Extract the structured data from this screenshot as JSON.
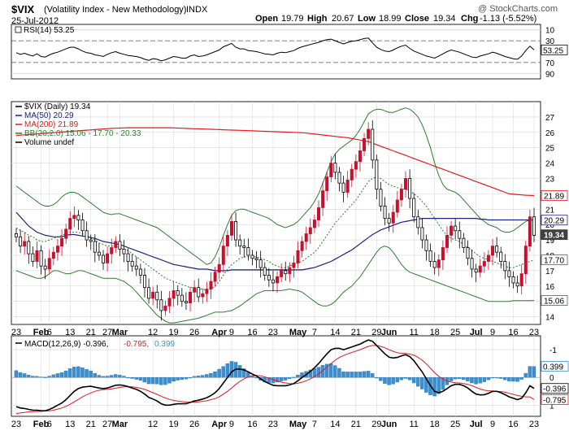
{
  "header": {
    "symbol": "$VIX",
    "description": "(Volatility Index - New Methodology)",
    "exchange": "INDX",
    "date": "25-Jul-2012",
    "watermark": "@ StockCharts.com",
    "quote": {
      "open_label": "Open",
      "open": "19.79",
      "high_label": "High",
      "high": "20.67",
      "low_label": "Low",
      "low": "18.99",
      "close_label": "Close",
      "close": "19.34",
      "chg_label": "Chg",
      "chg": "-1.13 (-5.52%)"
    }
  },
  "colors": {
    "up": "#000000",
    "down": "#c8102e",
    "ma50": "#1a237e",
    "ma200": "#e31a1c",
    "bollinger": "#2e7d32",
    "rsi": "#000000",
    "macd": "#000000",
    "signal": "#e31a1c",
    "histogram": "#3a8fd0",
    "grid": "#d6d6d6",
    "last_badge": "#404040"
  },
  "rsi_panel": {
    "legend": "RSI(14) 53.25",
    "ticks": [
      "90",
      "70",
      "30",
      "10"
    ],
    "last_badge": "53.25"
  },
  "price_panel": {
    "legend": [
      {
        "text": "$VIX (Daily) 19.34",
        "color": "#000000"
      },
      {
        "text": "MA(50) 20.29",
        "color": "#1a237e"
      },
      {
        "text": "MA(200) 21.89",
        "color": "#e31a1c"
      },
      {
        "text": "BB(20,2.0) 15.06 - 17.70 - 20.33",
        "color": "#2e7d32"
      },
      {
        "text": "Volume undef",
        "color": "#000000"
      }
    ],
    "ticks": [
      "27",
      "26",
      "25",
      "24",
      "23",
      "22",
      "21",
      "20",
      "19",
      "18",
      "17",
      "16",
      "15",
      "14"
    ],
    "badges": [
      {
        "text": "21.89",
        "value": 21.89,
        "bg": "#ffffff",
        "fg": "#000000",
        "border": "#e31a1c"
      },
      {
        "text": "20.29",
        "value": 20.29,
        "bg": "#ffffff",
        "fg": "#000000",
        "border": "#1a237e"
      },
      {
        "text": "19.34",
        "value": 19.34,
        "bg": "#404040",
        "fg": "#ffffff",
        "border": "#404040"
      },
      {
        "text": "17.70",
        "value": 17.7,
        "bg": "#ffffff",
        "fg": "#000000",
        "border": "#2e7d32"
      },
      {
        "text": "15.06",
        "value": 15.06,
        "bg": "#ffffff",
        "fg": "#000000",
        "border": "#2e7d32"
      }
    ]
  },
  "macd_panel": {
    "legend": [
      {
        "text": "MACD(12,26,9) -0.396,",
        "color": "#000000"
      },
      {
        "text": " -0.795,",
        "color": "#e31a1c"
      },
      {
        "text": " 0.399",
        "color": "#3a8fd0"
      }
    ],
    "ticks": [
      "1",
      "0",
      "-1"
    ],
    "badges": [
      {
        "text": "0.399",
        "value": 0.399,
        "bg": "#ffffff",
        "fg": "#000000",
        "border": "#3a8fd0"
      },
      {
        "text": "-0.396",
        "value": -0.396,
        "bg": "#ffffff",
        "fg": "#000000",
        "border": "#000000"
      },
      {
        "text": "-0.795",
        "value": -0.795,
        "bg": "#ffffff",
        "fg": "#000000",
        "border": "#e31a1c"
      }
    ]
  },
  "x_axis": {
    "labels": [
      {
        "text": "23",
        "bold": false,
        "i": 0
      },
      {
        "text": "Feb",
        "bold": true,
        "i": 6
      },
      {
        "text": "6",
        "bold": false,
        "i": 8
      },
      {
        "text": "13",
        "bold": false,
        "i": 13
      },
      {
        "text": "21",
        "bold": false,
        "i": 18
      },
      {
        "text": "27",
        "bold": false,
        "i": 22
      },
      {
        "text": "Mar",
        "bold": true,
        "i": 25
      },
      {
        "text": "12",
        "bold": false,
        "i": 33
      },
      {
        "text": "19",
        "bold": false,
        "i": 38
      },
      {
        "text": "26",
        "bold": false,
        "i": 43
      },
      {
        "text": "Apr",
        "bold": true,
        "i": 49
      },
      {
        "text": "9",
        "bold": false,
        "i": 52
      },
      {
        "text": "16",
        "bold": false,
        "i": 57
      },
      {
        "text": "23",
        "bold": false,
        "i": 62
      },
      {
        "text": "May",
        "bold": true,
        "i": 68
      },
      {
        "text": "7",
        "bold": false,
        "i": 72
      },
      {
        "text": "14",
        "bold": false,
        "i": 77
      },
      {
        "text": "21",
        "bold": false,
        "i": 82
      },
      {
        "text": "29",
        "bold": false,
        "i": 87
      },
      {
        "text": "Jun",
        "bold": true,
        "i": 90
      },
      {
        "text": "11",
        "bold": false,
        "i": 96
      },
      {
        "text": "18",
        "bold": false,
        "i": 101
      },
      {
        "text": "25",
        "bold": false,
        "i": 106
      },
      {
        "text": "Jul",
        "bold": true,
        "i": 111
      },
      {
        "text": "9",
        "bold": false,
        "i": 115
      },
      {
        "text": "16",
        "bold": false,
        "i": 120
      },
      {
        "text": "23",
        "bold": false,
        "i": 125
      }
    ]
  },
  "chart_data": {
    "type": "candlestick",
    "title": "$VIX (Volatility Index - New Methodology) INDX",
    "price_ylim": [
      13.5,
      28
    ],
    "price_ticks": [
      14,
      15,
      16,
      17,
      18,
      19,
      20,
      21,
      22,
      23,
      24,
      25,
      26,
      27
    ],
    "rsi_ylim": [
      0,
      100
    ],
    "rsi_ticks": [
      10,
      30,
      70,
      90
    ],
    "macd_ylim": [
      -1.4,
      1.5
    ],
    "macd_ticks": [
      -1,
      0,
      1
    ],
    "close": [
      19.2,
      18.6,
      18.9,
      18.1,
      17.6,
      18.3,
      17.3,
      17.1,
      17.8,
      18.2,
      18.6,
      19.1,
      19.7,
      20.4,
      20.6,
      20.3,
      19.6,
      19.0,
      18.9,
      18.2,
      18.0,
      17.5,
      18.1,
      18.5,
      18.9,
      18.4,
      18.1,
      17.6,
      17.3,
      17.1,
      16.7,
      15.9,
      15.2,
      15.6,
      15.1,
      14.4,
      14.7,
      15.2,
      15.7,
      15.4,
      15.0,
      14.9,
      15.6,
      15.9,
      15.3,
      15.5,
      15.8,
      16.3,
      16.9,
      17.4,
      18.6,
      19.3,
      20.2,
      19.0,
      18.6,
      18.5,
      18.0,
      17.8,
      17.7,
      17.2,
      16.7,
      16.4,
      16.2,
      16.6,
      17.0,
      16.8,
      17.2,
      17.5,
      18.3,
      18.9,
      19.4,
      19.8,
      20.3,
      21.1,
      22.2,
      23.1,
      24.0,
      23.4,
      22.7,
      22.1,
      22.9,
      23.6,
      24.1,
      24.8,
      25.6,
      26.2,
      24.2,
      22.3,
      21.2,
      20.4,
      20.1,
      20.8,
      21.6,
      22.3,
      23.0,
      21.7,
      20.5,
      19.8,
      19.0,
      18.3,
      17.6,
      17.2,
      17.7,
      18.5,
      19.3,
      19.9,
      19.6,
      19.1,
      18.5,
      17.8,
      17.1,
      16.9,
      17.3,
      17.6,
      18.0,
      18.6,
      18.2,
      17.6,
      17.0,
      16.6,
      16.2,
      16.0,
      16.8,
      18.6,
      20.5,
      19.3
    ],
    "ma50": [
      20.8,
      20.5,
      20.2,
      19.9,
      19.7,
      19.5,
      19.4,
      19.3,
      19.25,
      19.2,
      19.2,
      19.2,
      19.3,
      19.35,
      19.35,
      19.3,
      19.25,
      19.2,
      19.15,
      19.1,
      19.0,
      18.9,
      18.85,
      18.8,
      18.75,
      18.7,
      18.6,
      18.5,
      18.4,
      18.3,
      18.2,
      18.1,
      18.0,
      17.9,
      17.8,
      17.7,
      17.6,
      17.5,
      17.4,
      17.35,
      17.3,
      17.25,
      17.2,
      17.15,
      17.1,
      17.1,
      17.1,
      17.05,
      17.0,
      17.0,
      17.0,
      17.0,
      17.05,
      17.05,
      17.05,
      17.05,
      17.05,
      17.05,
      17.05,
      17.05,
      17.05,
      17.05,
      17.05,
      17.05,
      17.05,
      17.05,
      17.05,
      17.05,
      17.05,
      17.05,
      17.1,
      17.15,
      17.2,
      17.3,
      17.4,
      17.5,
      17.6,
      17.75,
      17.9,
      18.05,
      18.2,
      18.35,
      18.55,
      18.75,
      18.95,
      19.15,
      19.35,
      19.5,
      19.65,
      19.75,
      19.85,
      19.95,
      20.05,
      20.15,
      20.2,
      20.25,
      20.3,
      20.35,
      20.4,
      20.4,
      20.4,
      20.4,
      20.4,
      20.4,
      20.4,
      20.4,
      20.4,
      20.4,
      20.4,
      20.4,
      20.4,
      20.4,
      20.35,
      20.35,
      20.3,
      20.3,
      20.3,
      20.3,
      20.3,
      20.3,
      20.3,
      20.3,
      20.3,
      20.3,
      20.3,
      20.29
    ],
    "ma200": [
      25.8,
      25.82,
      25.84,
      25.86,
      25.88,
      25.9,
      25.92,
      25.94,
      25.96,
      25.98,
      26.0,
      26.02,
      26.04,
      26.06,
      26.08,
      26.1,
      26.12,
      26.14,
      26.16,
      26.18,
      26.2,
      26.22,
      26.24,
      26.26,
      26.27,
      26.28,
      26.29,
      26.3,
      26.3,
      26.3,
      26.3,
      26.3,
      26.3,
      26.3,
      26.3,
      26.3,
      26.3,
      26.3,
      26.29,
      26.28,
      26.27,
      26.26,
      26.25,
      26.24,
      26.23,
      26.22,
      26.21,
      26.2,
      26.19,
      26.18,
      26.17,
      26.16,
      26.15,
      26.14,
      26.13,
      26.12,
      26.11,
      26.1,
      26.09,
      26.08,
      26.07,
      26.06,
      26.05,
      26.04,
      26.03,
      26.02,
      26.01,
      26.0,
      25.99,
      25.98,
      25.95,
      25.92,
      25.89,
      25.86,
      25.83,
      25.8,
      25.77,
      25.74,
      25.71,
      25.68,
      25.65,
      25.6,
      25.55,
      25.5,
      25.45,
      25.4,
      25.3,
      25.2,
      25.1,
      25.0,
      24.9,
      24.8,
      24.7,
      24.6,
      24.5,
      24.4,
      24.3,
      24.2,
      24.1,
      24.0,
      23.9,
      23.8,
      23.7,
      23.6,
      23.5,
      23.4,
      23.3,
      23.2,
      23.1,
      23.0,
      22.9,
      22.8,
      22.7,
      22.6,
      22.5,
      22.4,
      22.3,
      22.2,
      22.1,
      22.0,
      21.97,
      21.95,
      21.93,
      21.91,
      21.9,
      21.89
    ],
    "bb_upper": [
      22.5,
      22.3,
      22.1,
      21.9,
      21.7,
      21.5,
      21.3,
      21.2,
      21.2,
      21.3,
      21.5,
      21.8,
      22.0,
      22.1,
      22.1,
      22.0,
      21.8,
      21.6,
      21.4,
      21.2,
      21.0,
      20.8,
      20.7,
      20.65,
      20.7,
      20.7,
      20.6,
      20.5,
      20.4,
      20.3,
      20.2,
      20.1,
      20.0,
      19.9,
      19.8,
      19.6,
      19.4,
      19.2,
      19.0,
      18.8,
      18.6,
      18.4,
      18.2,
      18.0,
      17.8,
      17.6,
      17.4,
      17.5,
      17.9,
      18.5,
      19.3,
      20.0,
      20.6,
      20.9,
      21.0,
      21.0,
      20.9,
      20.8,
      20.7,
      20.6,
      20.5,
      20.4,
      20.2,
      20.0,
      19.9,
      19.8,
      19.9,
      20.0,
      20.2,
      20.5,
      20.8,
      21.1,
      21.5,
      22.0,
      22.7,
      23.4,
      24.1,
      24.6,
      24.9,
      25.1,
      25.3,
      25.5,
      25.8,
      26.2,
      26.7,
      27.2,
      27.4,
      27.5,
      27.5,
      27.4,
      27.3,
      27.3,
      27.4,
      27.5,
      27.6,
      27.5,
      27.3,
      27.0,
      26.5,
      25.8,
      25.0,
      24.0,
      23.2,
      22.6,
      22.3,
      22.2,
      22.1,
      21.9,
      21.6,
      21.3,
      21.0,
      20.7,
      20.4,
      20.2,
      20.0,
      19.9,
      19.8,
      19.6,
      19.5,
      19.5,
      19.6,
      19.8,
      20.0,
      20.2,
      20.3,
      20.33
    ],
    "bb_lower": [
      17.0,
      16.9,
      16.8,
      16.7,
      16.6,
      16.5,
      16.5,
      16.6,
      16.8,
      17.0,
      17.0,
      16.9,
      16.8,
      16.8,
      16.9,
      17.0,
      17.0,
      16.9,
      16.8,
      16.7,
      16.6,
      16.5,
      16.5,
      16.5,
      16.5,
      16.4,
      16.3,
      16.1,
      15.9,
      15.6,
      15.3,
      15.0,
      14.7,
      14.4,
      14.1,
      13.9,
      13.7,
      13.6,
      13.6,
      13.65,
      13.7,
      13.75,
      13.8,
      13.85,
      13.9,
      14.0,
      14.1,
      14.2,
      14.3,
      14.3,
      14.3,
      14.35,
      14.4,
      14.55,
      14.7,
      14.9,
      15.1,
      15.3,
      15.5,
      15.6,
      15.7,
      15.7,
      15.7,
      15.7,
      15.7,
      15.75,
      15.8,
      15.75,
      15.7,
      15.6,
      15.4,
      15.2,
      15.0,
      14.8,
      14.7,
      14.7,
      14.8,
      15.0,
      15.3,
      15.6,
      15.8,
      16.0,
      16.3,
      16.6,
      17.0,
      17.4,
      17.8,
      18.2,
      18.5,
      18.6,
      18.5,
      18.2,
      17.8,
      17.4,
      17.1,
      16.9,
      16.8,
      16.7,
      16.6,
      16.5,
      16.4,
      16.3,
      16.2,
      16.1,
      16.0,
      15.9,
      15.8,
      15.7,
      15.6,
      15.5,
      15.4,
      15.3,
      15.2,
      15.1,
      15.0,
      15.0,
      15.0,
      15.0,
      15.0,
      15.0,
      15.05,
      15.05,
      15.05,
      15.05,
      15.05,
      15.06
    ],
    "bb_mid": [
      19.8,
      19.6,
      19.5,
      19.3,
      19.2,
      19.0,
      18.9,
      18.9,
      19.0,
      19.1,
      19.2,
      19.3,
      19.4,
      19.5,
      19.5,
      19.5,
      19.4,
      19.3,
      19.1,
      19.0,
      18.8,
      18.7,
      18.6,
      18.6,
      18.6,
      18.5,
      18.4,
      18.3,
      18.1,
      17.9,
      17.7,
      17.5,
      17.3,
      17.1,
      16.9,
      16.7,
      16.5,
      16.4,
      16.3,
      16.2,
      16.1,
      16.0,
      15.9,
      15.9,
      15.8,
      15.8,
      15.7,
      15.8,
      16.0,
      16.3,
      16.7,
      17.1,
      17.4,
      17.6,
      17.8,
      17.9,
      17.9,
      17.9,
      17.9,
      17.8,
      17.7,
      17.6,
      17.4,
      17.3,
      17.2,
      17.2,
      17.3,
      17.4,
      17.5,
      17.6,
      17.8,
      18.0,
      18.2,
      18.5,
      18.9,
      19.3,
      19.7,
      20.1,
      20.4,
      20.7,
      21.0,
      21.3,
      21.6,
      22.0,
      22.4,
      22.8,
      23.0,
      23.1,
      23.0,
      22.8,
      22.6,
      22.5,
      22.4,
      22.3,
      22.3,
      22.2,
      22.0,
      21.8,
      21.5,
      21.2,
      20.8,
      20.4,
      20.0,
      19.6,
      19.3,
      19.1,
      19.0,
      18.9,
      18.7,
      18.5,
      18.3,
      18.1,
      17.9,
      17.8,
      17.7,
      17.6,
      17.5,
      17.4,
      17.3,
      17.2,
      17.2,
      17.3,
      17.4,
      17.5,
      17.6,
      17.7
    ],
    "rsi": [
      48,
      45,
      47,
      44,
      42,
      46,
      41,
      40,
      44,
      47,
      49,
      52,
      55,
      58,
      58,
      55,
      51,
      48,
      47,
      44,
      43,
      41,
      45,
      48,
      50,
      47,
      45,
      43,
      42,
      41,
      39,
      36,
      34,
      37,
      36,
      33,
      35,
      38,
      41,
      40,
      38,
      38,
      42,
      44,
      41,
      42,
      44,
      47,
      50,
      53,
      59,
      62,
      65,
      58,
      55,
      55,
      52,
      51,
      50,
      48,
      46,
      45,
      44,
      47,
      49,
      48,
      50,
      52,
      56,
      59,
      61,
      63,
      65,
      67,
      70,
      72,
      73,
      70,
      67,
      64,
      67,
      69,
      70,
      72,
      74,
      75,
      66,
      58,
      54,
      51,
      50,
      53,
      57,
      60,
      62,
      56,
      51,
      48,
      45,
      42,
      40,
      38,
      42,
      46,
      50,
      53,
      51,
      49,
      46,
      43,
      40,
      39,
      42,
      44,
      46,
      49,
      47,
      44,
      41,
      39,
      37,
      36,
      42,
      52,
      60,
      53.25
    ],
    "macd": [
      -1.05,
      -1.1,
      -1.12,
      -1.15,
      -1.18,
      -1.18,
      -1.2,
      -1.2,
      -1.15,
      -1.08,
      -1.0,
      -0.92,
      -0.8,
      -0.65,
      -0.5,
      -0.4,
      -0.35,
      -0.33,
      -0.32,
      -0.35,
      -0.38,
      -0.4,
      -0.38,
      -0.33,
      -0.28,
      -0.27,
      -0.29,
      -0.33,
      -0.38,
      -0.43,
      -0.5,
      -0.6,
      -0.72,
      -0.78,
      -0.85,
      -0.95,
      -1.0,
      -1.0,
      -0.97,
      -0.95,
      -0.95,
      -0.95,
      -0.9,
      -0.85,
      -0.82,
      -0.78,
      -0.73,
      -0.65,
      -0.55,
      -0.4,
      -0.2,
      0.0,
      0.2,
      0.3,
      0.3,
      0.27,
      0.2,
      0.12,
      0.05,
      -0.05,
      -0.15,
      -0.22,
      -0.28,
      -0.3,
      -0.3,
      -0.3,
      -0.27,
      -0.22,
      -0.12,
      0.0,
      0.1,
      0.22,
      0.35,
      0.5,
      0.68,
      0.85,
      1.0,
      1.05,
      1.05,
      1.0,
      1.05,
      1.1,
      1.15,
      1.2,
      1.28,
      1.35,
      1.3,
      1.15,
      1.0,
      0.85,
      0.73,
      0.7,
      0.72,
      0.78,
      0.82,
      0.75,
      0.6,
      0.4,
      0.2,
      -0.05,
      -0.3,
      -0.5,
      -0.55,
      -0.5,
      -0.4,
      -0.3,
      -0.25,
      -0.25,
      -0.3,
      -0.38,
      -0.5,
      -0.6,
      -0.63,
      -0.62,
      -0.57,
      -0.5,
      -0.5,
      -0.55,
      -0.62,
      -0.7,
      -0.75,
      -0.8,
      -0.75,
      -0.55,
      -0.3,
      -0.396
    ],
    "signal": [
      -1.3,
      -1.28,
      -1.26,
      -1.24,
      -1.23,
      -1.22,
      -1.22,
      -1.21,
      -1.2,
      -1.18,
      -1.14,
      -1.1,
      -1.04,
      -0.97,
      -0.88,
      -0.79,
      -0.7,
      -0.62,
      -0.56,
      -0.5,
      -0.46,
      -0.44,
      -0.43,
      -0.41,
      -0.39,
      -0.36,
      -0.34,
      -0.33,
      -0.34,
      -0.36,
      -0.39,
      -0.43,
      -0.49,
      -0.55,
      -0.61,
      -0.68,
      -0.74,
      -0.79,
      -0.83,
      -0.85,
      -0.87,
      -0.89,
      -0.89,
      -0.89,
      -0.88,
      -0.86,
      -0.84,
      -0.8,
      -0.76,
      -0.7,
      -0.6,
      -0.5,
      -0.38,
      -0.25,
      -0.14,
      -0.05,
      0.02,
      0.06,
      0.07,
      0.06,
      0.02,
      -0.03,
      -0.08,
      -0.13,
      -0.17,
      -0.2,
      -0.22,
      -0.23,
      -0.21,
      -0.17,
      -0.12,
      -0.05,
      0.03,
      0.13,
      0.24,
      0.37,
      0.5,
      0.62,
      0.72,
      0.79,
      0.85,
      0.9,
      0.95,
      1.0,
      1.06,
      1.12,
      1.15,
      1.15,
      1.12,
      1.07,
      1.0,
      0.94,
      0.89,
      0.87,
      0.86,
      0.84,
      0.8,
      0.72,
      0.62,
      0.49,
      0.33,
      0.17,
      0.04,
      -0.06,
      -0.13,
      -0.17,
      -0.19,
      -0.2,
      -0.22,
      -0.25,
      -0.3,
      -0.36,
      -0.42,
      -0.46,
      -0.48,
      -0.49,
      -0.5,
      -0.51,
      -0.53,
      -0.57,
      -0.61,
      -0.65,
      -0.68,
      -0.7,
      -0.7,
      -0.795
    ]
  }
}
